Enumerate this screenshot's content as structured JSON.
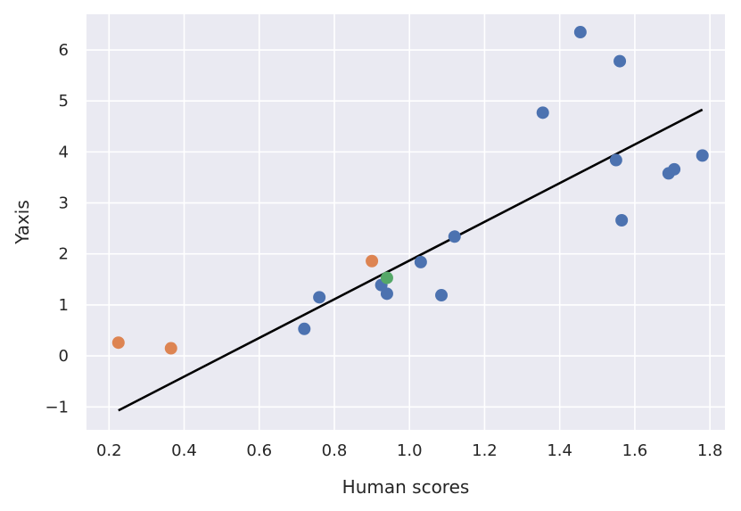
{
  "chart_data": {
    "type": "scatter",
    "xlabel": "Human scores",
    "ylabel": "Yaxis",
    "xlim": [
      0.14,
      1.84
    ],
    "ylim": [
      -1.45,
      6.7
    ],
    "xticks": [
      0.2,
      0.4,
      0.6,
      0.8,
      1.0,
      1.2,
      1.4,
      1.6,
      1.8
    ],
    "xtick_labels": [
      "0.2",
      "0.4",
      "0.6",
      "0.8",
      "1.0",
      "1.2",
      "1.4",
      "1.6",
      "1.8"
    ],
    "yticks": [
      -1,
      0,
      1,
      2,
      3,
      4,
      5,
      6
    ],
    "ytick_labels": [
      "−1",
      "0",
      "1",
      "2",
      "3",
      "4",
      "5",
      "6"
    ],
    "grid": true,
    "background": "#eaeaf2",
    "series": [
      {
        "color": "#4c72b0",
        "points": [
          [
            0.72,
            0.53
          ],
          [
            0.76,
            1.15
          ],
          [
            0.925,
            1.39
          ],
          [
            0.94,
            1.22
          ],
          [
            1.03,
            1.84
          ],
          [
            1.085,
            1.19
          ],
          [
            1.12,
            2.34
          ],
          [
            1.355,
            4.77
          ],
          [
            1.455,
            6.35
          ],
          [
            1.55,
            3.84
          ],
          [
            1.56,
            5.78
          ],
          [
            1.565,
            2.66
          ],
          [
            1.69,
            3.58
          ],
          [
            1.705,
            3.66
          ],
          [
            1.78,
            3.93
          ]
        ]
      },
      {
        "color": "#dd8452",
        "points": [
          [
            0.225,
            0.26
          ],
          [
            0.365,
            0.15
          ],
          [
            0.9,
            1.86
          ]
        ]
      },
      {
        "color": "#55a868",
        "points": [
          [
            0.94,
            1.53
          ]
        ]
      }
    ],
    "fit_line": {
      "color": "#000000",
      "points": [
        [
          0.225,
          -1.07
        ],
        [
          1.78,
          4.83
        ]
      ]
    }
  }
}
